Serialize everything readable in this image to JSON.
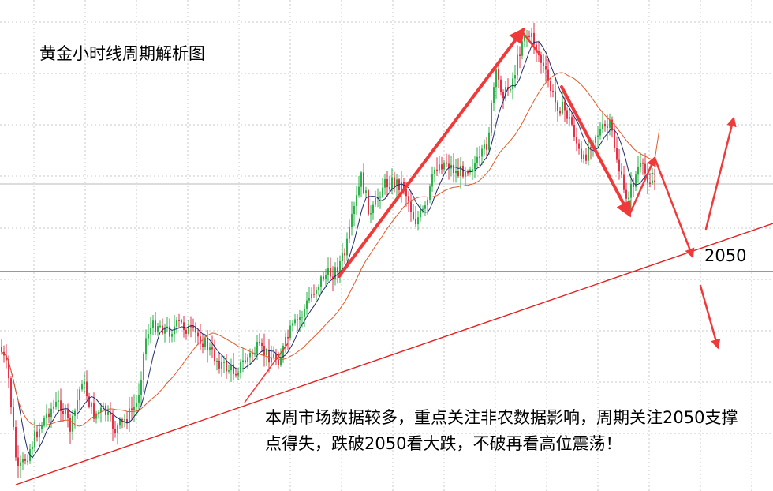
{
  "chart_data": {
    "type": "candlestick",
    "title": "黄金小时线周期解析图",
    "instrument": "黄金",
    "timeframe": "小时线",
    "key_level": {
      "label": "2050",
      "value": 2050
    },
    "annotation": "本周市场数据较多，重点关注非农数据影响，周期关注2050支撑点得失，跌破2050看大跌，不破再看高位震荡！",
    "grid": true,
    "colors": {
      "up": "#2db14a",
      "down": "#e23148",
      "fast_ma": "#1f2a6e",
      "slow_ma": "#e05a2b",
      "trend": "#e52020",
      "arrows": "#f03a3a",
      "grid": "#c8c8c8"
    },
    "scenarios": [
      "跌破2050看大跌",
      "不破再看高位震荡"
    ]
  }
}
